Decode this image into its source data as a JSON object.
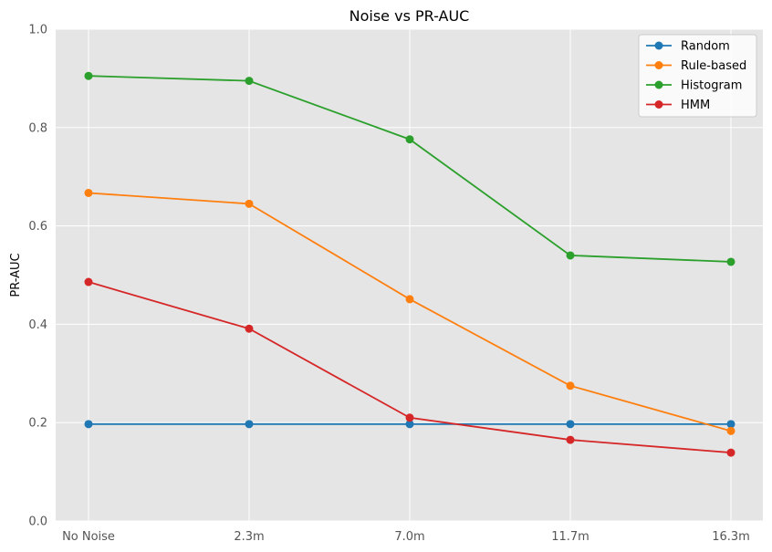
{
  "chart_data": {
    "type": "line",
    "title": "Noise vs PR-AUC",
    "xlabel": "",
    "ylabel": "PR-AUC",
    "categories": [
      "No Noise",
      "2.3m",
      "7.0m",
      "11.7m",
      "16.3m"
    ],
    "ylim": [
      0,
      1.0
    ],
    "yticks": [
      0.0,
      0.2,
      0.4,
      0.6,
      0.8,
      1.0
    ],
    "ytick_labels": [
      "0.0",
      "0.2",
      "0.4",
      "0.6",
      "0.8",
      "1.0"
    ],
    "grid": true,
    "legend_position": "top-right",
    "series": [
      {
        "name": "Random",
        "color": "#1f77b4",
        "values": [
          0.197,
          0.197,
          0.197,
          0.197,
          0.197
        ]
      },
      {
        "name": "Rule-based",
        "color": "#ff7f0e",
        "values": [
          0.667,
          0.645,
          0.451,
          0.275,
          0.183
        ]
      },
      {
        "name": "Histogram",
        "color": "#2ca02c",
        "values": [
          0.905,
          0.895,
          0.776,
          0.54,
          0.527
        ]
      },
      {
        "name": "HMM",
        "color": "#d62728",
        "values": [
          0.486,
          0.391,
          0.21,
          0.165,
          0.139
        ]
      }
    ]
  }
}
